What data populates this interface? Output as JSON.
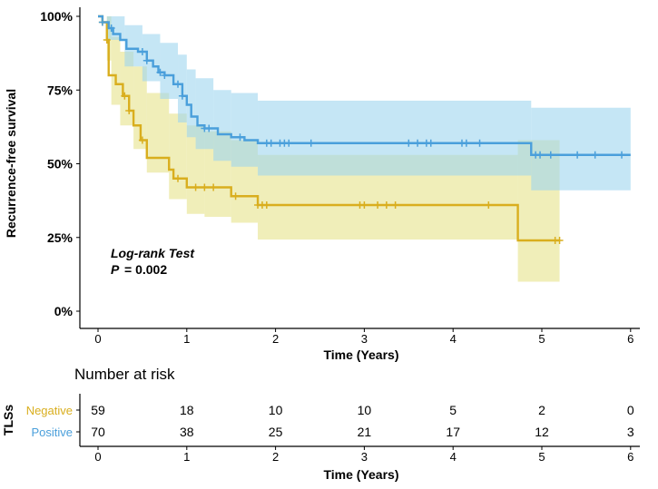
{
  "chart_data": {
    "type": "line",
    "subtype": "kaplan-meier",
    "ylabel": "Recurrence-free survival",
    "xlabel": "Time (Years)",
    "xlim": [
      0,
      6
    ],
    "ylim": [
      0,
      100
    ],
    "x_ticks": [
      "0",
      "1",
      "2",
      "3",
      "4",
      "5",
      "6"
    ],
    "y_ticks": [
      "0%",
      "25%",
      "50%",
      "75%",
      "100%"
    ],
    "annotation": {
      "title": "Log-rank Test",
      "p_label": "P",
      "p_value": "= 0.002"
    },
    "series": [
      {
        "name": "Negative",
        "color": "#D9AE1E",
        "band_color": "#E6E28A",
        "steps": [
          [
            0,
            100
          ],
          [
            0.05,
            98
          ],
          [
            0.1,
            92
          ],
          [
            0.12,
            80
          ],
          [
            0.2,
            77
          ],
          [
            0.28,
            73
          ],
          [
            0.35,
            68
          ],
          [
            0.4,
            63
          ],
          [
            0.48,
            58
          ],
          [
            0.55,
            52
          ],
          [
            0.8,
            48
          ],
          [
            0.85,
            45
          ],
          [
            1.0,
            42
          ],
          [
            1.5,
            39
          ],
          [
            1.8,
            36
          ],
          [
            4.73,
            24
          ],
          [
            5.2,
            24
          ]
        ],
        "ci": [
          [
            0,
            100,
            100
          ],
          [
            0.1,
            85,
            100
          ],
          [
            0.15,
            70,
            93
          ],
          [
            0.25,
            63,
            88
          ],
          [
            0.4,
            55,
            83
          ],
          [
            0.55,
            47,
            74
          ],
          [
            0.8,
            38,
            67
          ],
          [
            1.0,
            33,
            63
          ],
          [
            1.2,
            32,
            61
          ],
          [
            1.5,
            30,
            58
          ],
          [
            1.8,
            24.3,
            53
          ],
          [
            4.73,
            10,
            58
          ],
          [
            5.2,
            10,
            58
          ]
        ],
        "censored": [
          0.05,
          0.1,
          0.3,
          0.35,
          0.5,
          0.9,
          1.1,
          1.2,
          1.3,
          1.55,
          1.8,
          1.85,
          1.9,
          2.95,
          3.0,
          3.15,
          3.25,
          3.35,
          4.4,
          5.15,
          5.2
        ]
      },
      {
        "name": "Positive",
        "color": "#4A9FDB",
        "band_color": "#9FD5EE",
        "steps": [
          [
            0,
            100
          ],
          [
            0.05,
            98
          ],
          [
            0.12,
            96
          ],
          [
            0.17,
            94
          ],
          [
            0.25,
            92
          ],
          [
            0.32,
            89
          ],
          [
            0.45,
            88
          ],
          [
            0.55,
            85
          ],
          [
            0.62,
            83
          ],
          [
            0.68,
            81
          ],
          [
            0.75,
            80
          ],
          [
            0.85,
            77
          ],
          [
            0.95,
            73
          ],
          [
            1.0,
            70
          ],
          [
            1.05,
            66
          ],
          [
            1.12,
            63
          ],
          [
            1.2,
            62
          ],
          [
            1.35,
            60
          ],
          [
            1.5,
            59
          ],
          [
            1.65,
            58
          ],
          [
            1.8,
            57
          ],
          [
            4.88,
            53
          ],
          [
            6.0,
            53
          ]
        ],
        "ci": [
          [
            0,
            100,
            100
          ],
          [
            0.1,
            92,
            100
          ],
          [
            0.3,
            83,
            97
          ],
          [
            0.5,
            78,
            94
          ],
          [
            0.7,
            72,
            91
          ],
          [
            0.9,
            64,
            87
          ],
          [
            1.0,
            59,
            82
          ],
          [
            1.1,
            55,
            79
          ],
          [
            1.3,
            51,
            75
          ],
          [
            1.5,
            49,
            74
          ],
          [
            1.8,
            46,
            71.4
          ],
          [
            4.88,
            41,
            69
          ],
          [
            6.0,
            41,
            69
          ]
        ],
        "censored": [
          0.05,
          0.15,
          0.5,
          0.55,
          0.7,
          0.75,
          0.9,
          0.95,
          1.2,
          1.25,
          1.6,
          1.9,
          1.95,
          2.05,
          2.1,
          2.15,
          2.4,
          3.5,
          3.6,
          3.7,
          3.75,
          4.1,
          4.15,
          4.3,
          4.93,
          4.98,
          5.1,
          5.4,
          5.6,
          5.9
        ]
      }
    ],
    "risk_table": {
      "title": "Number at risk",
      "ylabel": "TLSs",
      "xlabel": "Time (Years)",
      "times": [
        "0",
        "1",
        "2",
        "3",
        "4",
        "5",
        "6"
      ],
      "rows": [
        {
          "label": "Negative",
          "color": "#D9AE1E",
          "values": [
            "59",
            "18",
            "10",
            "10",
            "5",
            "2",
            "0"
          ]
        },
        {
          "label": "Positive",
          "color": "#4A9FDB",
          "values": [
            "70",
            "38",
            "25",
            "21",
            "17",
            "12",
            "3"
          ]
        }
      ]
    }
  }
}
